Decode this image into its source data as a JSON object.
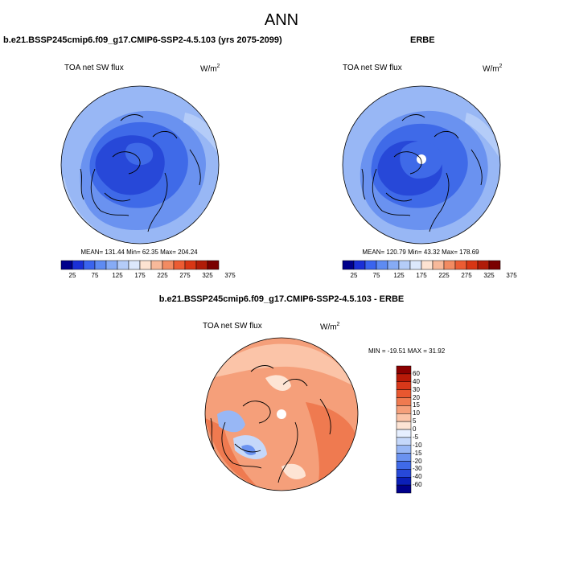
{
  "title": "ANN",
  "panels": [
    {
      "title": "b.e21.BSSP245cmip6.f09_g17.CMIP6-SSP2-4.5.103 (yrs 2075-2099)",
      "variable": "TOA net SW flux",
      "units": "W/m",
      "units_exp": "2",
      "stats": "MEAN= 131.44  Min=  62.35  Max= 204.24"
    },
    {
      "title": "ERBE",
      "variable": "TOA net SW flux",
      "units": "W/m",
      "units_exp": "2",
      "stats": "MEAN= 120.79  Min=  43.32  Max= 178.69"
    }
  ],
  "diff_panel": {
    "title": "b.e21.BSSP245cmip6.f09_g17.CMIP6-SSP2-4.5.103 - ERBE",
    "variable": "TOA net SW flux",
    "units": "W/m",
    "units_exp": "2",
    "stats": "MIN = -19.51 MAX =  31.92"
  },
  "colorbar_abs": {
    "colors": [
      "#00008b",
      "#1a2fd6",
      "#3a64ee",
      "#5e8bf2",
      "#86abf5",
      "#b4ccf8",
      "#dce8fc",
      "#fde3d2",
      "#f8b99a",
      "#f28b62",
      "#ec5c33",
      "#d83614",
      "#b01c08",
      "#7a0000"
    ],
    "ticks": [
      "25",
      "75",
      "125",
      "175",
      "225",
      "275",
      "325",
      "375"
    ]
  },
  "colorbar_diff": {
    "colors": [
      "#00008b",
      "#0b1fb8",
      "#2748d8",
      "#3f6ae8",
      "#6a92f0",
      "#98b7f5",
      "#c5d8fa",
      "#e6efff",
      "#fde4d4",
      "#fbc4a8",
      "#f59f7a",
      "#ef7a50",
      "#e8572f",
      "#d8381a",
      "#b81a08",
      "#8b0000"
    ],
    "ticks": [
      "60",
      "40",
      "30",
      "20",
      "15",
      "10",
      "5",
      "0",
      "-5",
      "-10",
      "-15",
      "-20",
      "-30",
      "-40",
      "-60"
    ]
  },
  "chart_data": {
    "type": "heatmap",
    "title": "ANN",
    "maps": [
      {
        "name": "b.e21.BSSP245cmip6.f09_g17.CMIP6-SSP2-4.5.103 (yrs 2075-2099)",
        "field": "TOA net SW flux",
        "units": "W/m2",
        "projection": "north polar stereographic",
        "mean": 131.44,
        "min": 62.35,
        "max": 204.24,
        "contour_levels": [
          25,
          50,
          75,
          100,
          125,
          150,
          175,
          200,
          225,
          250,
          275,
          300,
          325,
          350,
          375
        ]
      },
      {
        "name": "ERBE",
        "field": "TOA net SW flux",
        "units": "W/m2",
        "projection": "north polar stereographic",
        "mean": 120.79,
        "min": 43.32,
        "max": 178.69,
        "contour_levels": [
          25,
          50,
          75,
          100,
          125,
          150,
          175,
          200,
          225,
          250,
          275,
          300,
          325,
          350,
          375
        ]
      },
      {
        "name": "b.e21.BSSP245cmip6.f09_g17.CMIP6-SSP2-4.5.103 - ERBE",
        "field": "TOA net SW flux",
        "units": "W/m2",
        "projection": "north polar stereographic",
        "min": -19.51,
        "max": 31.92,
        "contour_levels": [
          -60,
          -40,
          -30,
          -20,
          -15,
          -10,
          -5,
          0,
          5,
          10,
          15,
          20,
          30,
          40,
          60
        ]
      }
    ]
  }
}
